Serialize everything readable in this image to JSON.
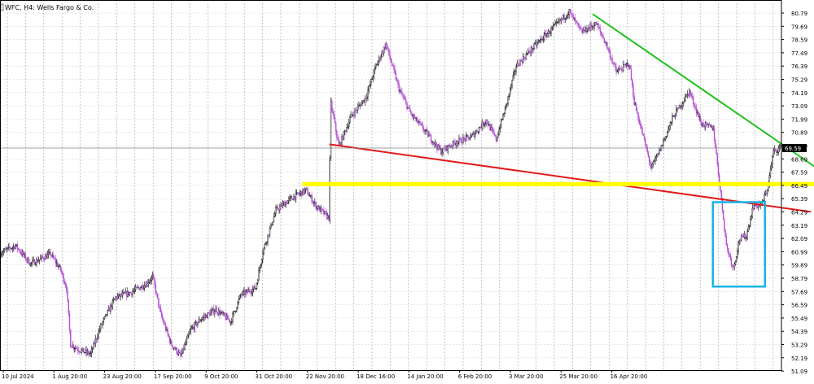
{
  "chart_data": {
    "type": "candlestick",
    "title": "WFC, H4: Wells Fargo & Co.",
    "current_price": 69.59,
    "y_ticks": [
      80.79,
      79.69,
      78.59,
      77.49,
      76.39,
      75.29,
      74.19,
      73.09,
      71.99,
      70.89,
      69.79,
      68.69,
      67.59,
      66.49,
      65.39,
      64.29,
      63.19,
      62.09,
      60.99,
      59.89,
      58.79,
      57.69,
      56.59,
      55.49,
      54.39,
      53.29,
      52.19,
      51.09
    ],
    "x_ticks": [
      "10 Jul 2024",
      "1 Aug 20:00",
      "23 Aug 20:00",
      "17 Sep 20:00",
      "9 Oct 20:00",
      "31 Oct 20:00",
      "22 Nov 20:00",
      "18 Dec 16:00",
      "14 Jan 20:00",
      "6 Feb 20:00",
      "3 Mar 20:00",
      "25 Mar 20:00",
      "16 Apr 20:00"
    ],
    "bar_count": 780,
    "price_path": [
      [
        0,
        60.9
      ],
      [
        15,
        61.5
      ],
      [
        30,
        60.0
      ],
      [
        50,
        60.8
      ],
      [
        60,
        59.5
      ],
      [
        66,
        58.0
      ],
      [
        70,
        53.3
      ],
      [
        80,
        52.8
      ],
      [
        90,
        52.5
      ],
      [
        100,
        54.8
      ],
      [
        115,
        57.2
      ],
      [
        130,
        57.6
      ],
      [
        145,
        58.3
      ],
      [
        152,
        58.9
      ],
      [
        160,
        55.8
      ],
      [
        170,
        53.4
      ],
      [
        180,
        52.3
      ],
      [
        190,
        54.5
      ],
      [
        200,
        55.4
      ],
      [
        215,
        56.2
      ],
      [
        230,
        55.2
      ],
      [
        240,
        57.4
      ],
      [
        255,
        58.0
      ],
      [
        262,
        61.0
      ],
      [
        275,
        64.4
      ],
      [
        290,
        65.4
      ],
      [
        305,
        66.1
      ],
      [
        315,
        64.8
      ],
      [
        328,
        63.8
      ],
      [
        330,
        73.3
      ],
      [
        338,
        69.7
      ],
      [
        350,
        72.2
      ],
      [
        365,
        73.8
      ],
      [
        375,
        76.4
      ],
      [
        385,
        78.2
      ],
      [
        398,
        74.5
      ],
      [
        410,
        72.4
      ],
      [
        425,
        70.9
      ],
      [
        440,
        69.3
      ],
      [
        455,
        70.1
      ],
      [
        470,
        70.5
      ],
      [
        485,
        71.9
      ],
      [
        495,
        70.3
      ],
      [
        505,
        73.1
      ],
      [
        515,
        76.4
      ],
      [
        525,
        77.3
      ],
      [
        540,
        78.6
      ],
      [
        555,
        79.8
      ],
      [
        568,
        80.9
      ],
      [
        580,
        79.2
      ],
      [
        595,
        79.9
      ],
      [
        605,
        78.2
      ],
      [
        615,
        75.9
      ],
      [
        628,
        76.6
      ],
      [
        633,
        73.4
      ],
      [
        642,
        70.5
      ],
      [
        650,
        67.9
      ],
      [
        660,
        69.7
      ],
      [
        672,
        72.2
      ],
      [
        688,
        74.3
      ],
      [
        700,
        71.6
      ],
      [
        712,
        71.2
      ],
      [
        718,
        66.8
      ],
      [
        725,
        61.5
      ],
      [
        732,
        59.6
      ],
      [
        738,
        62.0
      ],
      [
        745,
        62.3
      ],
      [
        752,
        64.8
      ],
      [
        760,
        64.9
      ],
      [
        766,
        66.2
      ],
      [
        772,
        69.3
      ],
      [
        779,
        69.59
      ]
    ],
    "annotations": [
      {
        "name": "resistance-trendline",
        "color": "#22c11f",
        "from": [
          592,
          80.7
        ],
        "to": [
          832,
          67.0
        ]
      },
      {
        "name": "support-trendline",
        "color": "#e31a1a",
        "from": [
          329,
          69.9
        ],
        "to": [
          810,
          64.3
        ]
      },
      {
        "name": "horizontal-level",
        "color": "#ffff00",
        "price": 66.6,
        "from": 302,
        "to": 868
      },
      {
        "name": "consolidation-box",
        "color": "#19b3e6",
        "x_from": 712,
        "x_to": 764,
        "y_top": 65.1,
        "y_bottom": 58.1
      }
    ],
    "colors": {
      "up": "#000000",
      "down": "#b24bd6",
      "grid": "#c8c8c8",
      "price_line": "#7f7f7f",
      "price_label_bg": "#000000",
      "price_label_fg": "#ffffff"
    },
    "grid": true
  }
}
